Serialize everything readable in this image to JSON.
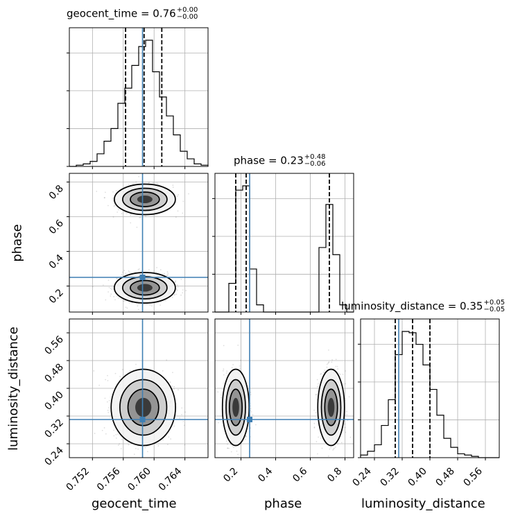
{
  "chart_data": {
    "type": "corner",
    "parameters": [
      "geocent_time",
      "phase",
      "luminosity_distance"
    ],
    "injection": {
      "geocent_time": 0.7585,
      "phase": 0.25,
      "luminosity_distance": 0.31
    },
    "injection_color": "#3f7fb3",
    "titles": [
      {
        "text": "geocent_time = 0.76",
        "sup": "+0.00",
        "sub": "−0.00"
      },
      {
        "text": "phase = 0.23",
        "sup": "+0.48",
        "sub": "−0.06"
      },
      {
        "text": "luminosity_distance = 0.35",
        "sup": "+0.05",
        "sub": "−0.05"
      }
    ],
    "axes": {
      "geocent_time": {
        "range": [
          0.749,
          0.767
        ],
        "ticks": [
          "0.752",
          "0.756",
          "0.760",
          "0.764"
        ],
        "tick_values": [
          0.752,
          0.756,
          0.76,
          0.764
        ]
      },
      "phase": {
        "range": [
          0.05,
          0.85
        ],
        "ticks": [
          "0.2",
          "0.4",
          "0.6",
          "0.8"
        ],
        "tick_values": [
          0.2,
          0.4,
          0.6,
          0.8
        ]
      },
      "luminosity_distance": {
        "range": [
          0.2,
          0.6
        ],
        "ticks": [
          "0.24",
          "0.32",
          "0.40",
          "0.48",
          "0.56"
        ],
        "tick_values": [
          0.24,
          0.32,
          0.4,
          0.48,
          0.56
        ]
      }
    },
    "histograms": {
      "geocent_time": {
        "edges_range": [
          0.749,
          0.767
        ],
        "bins": 20,
        "counts": [
          0,
          1,
          2,
          4,
          10,
          20,
          30,
          50,
          62,
          80,
          95,
          100,
          75,
          55,
          40,
          25,
          12,
          6,
          2,
          1
        ],
        "quantiles": [
          0.7563,
          0.7587,
          0.761
        ]
      },
      "phase": {
        "edges_range": [
          0.05,
          0.85
        ],
        "bins": 20,
        "counts": [
          0,
          0,
          20,
          85,
          88,
          30,
          5,
          0,
          0,
          0,
          0,
          0,
          0,
          0,
          0,
          45,
          75,
          40,
          5,
          0
        ],
        "quantiles": [
          0.17,
          0.23,
          0.71
        ]
      },
      "luminosity_distance": {
        "edges_range": [
          0.2,
          0.6
        ],
        "bins": 20,
        "counts": [
          2,
          5,
          10,
          25,
          45,
          80,
          98,
          97,
          88,
          72,
          53,
          33,
          15,
          8,
          3,
          2,
          1,
          0,
          0,
          0
        ],
        "quantiles": [
          0.3,
          0.35,
          0.4
        ]
      }
    }
  }
}
